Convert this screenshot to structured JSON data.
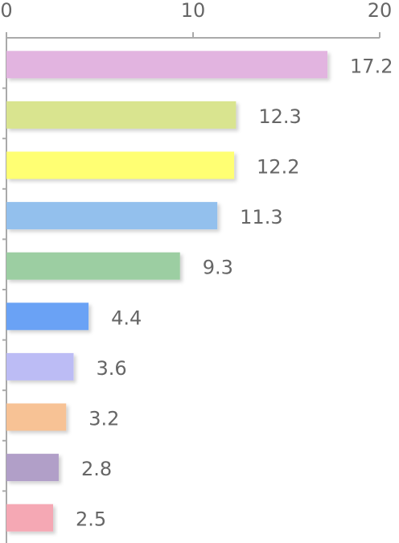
{
  "chart_data": {
    "type": "barh",
    "categories": [
      null,
      null,
      null,
      null,
      null,
      null,
      null,
      null,
      null,
      null
    ],
    "values": [
      17.2,
      12.3,
      12.2,
      11.3,
      9.3,
      4.4,
      3.6,
      3.2,
      2.8,
      2.5
    ],
    "colors": [
      "#e2b4e0",
      "#d9e48f",
      "#ffff73",
      "#93c0ed",
      "#9ccea2",
      "#6aa2f5",
      "#bcbcf5",
      "#f7c295",
      "#b19fc8",
      "#f5a8b4"
    ],
    "xlim": [
      0,
      20
    ],
    "xticks": [
      0,
      10,
      20
    ],
    "grid": false
  }
}
